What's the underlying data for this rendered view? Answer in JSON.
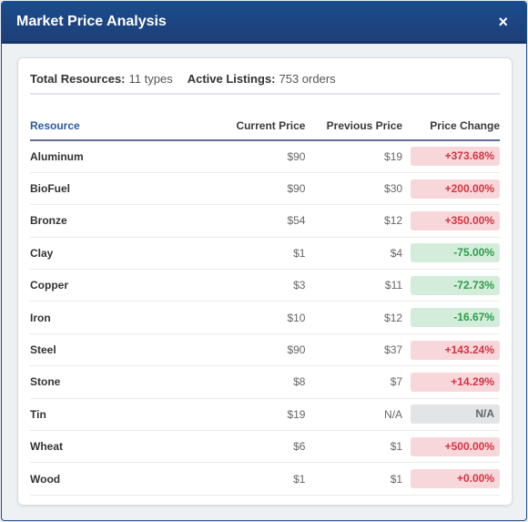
{
  "dialog": {
    "title": "Market Price Analysis",
    "close_glyph": "×"
  },
  "summary": {
    "total_label": "Total Resources:",
    "total_value": "11 types",
    "active_label": "Active Listings:",
    "active_value": "753 orders"
  },
  "table": {
    "headers": [
      "Resource",
      "Current Price",
      "Previous Price",
      "Price Change"
    ],
    "rows": [
      {
        "resource": "Aluminum",
        "current": "$90",
        "previous": "$19",
        "change": "+373.68%",
        "trend": "up"
      },
      {
        "resource": "BioFuel",
        "current": "$90",
        "previous": "$30",
        "change": "+200.00%",
        "trend": "up"
      },
      {
        "resource": "Bronze",
        "current": "$54",
        "previous": "$12",
        "change": "+350.00%",
        "trend": "up"
      },
      {
        "resource": "Clay",
        "current": "$1",
        "previous": "$4",
        "change": "-75.00%",
        "trend": "down"
      },
      {
        "resource": "Copper",
        "current": "$3",
        "previous": "$11",
        "change": "-72.73%",
        "trend": "down"
      },
      {
        "resource": "Iron",
        "current": "$10",
        "previous": "$12",
        "change": "-16.67%",
        "trend": "down"
      },
      {
        "resource": "Steel",
        "current": "$90",
        "previous": "$37",
        "change": "+143.24%",
        "trend": "up"
      },
      {
        "resource": "Stone",
        "current": "$8",
        "previous": "$7",
        "change": "+14.29%",
        "trend": "up"
      },
      {
        "resource": "Tin",
        "current": "$19",
        "previous": "N/A",
        "change": "N/A",
        "trend": "na"
      },
      {
        "resource": "Wheat",
        "current": "$6",
        "previous": "$1",
        "change": "+500.00%",
        "trend": "up"
      },
      {
        "resource": "Wood",
        "current": "$1",
        "previous": "$1",
        "change": "+0.00%",
        "trend": "up"
      }
    ]
  },
  "colors": {
    "header_bg": "#1a4c8d",
    "increase_bg": "#f8d7da",
    "increase_text": "#d63342",
    "decrease_bg": "#d4edda",
    "decrease_text": "#2a9d4a",
    "na_bg": "#e3e4e6"
  }
}
